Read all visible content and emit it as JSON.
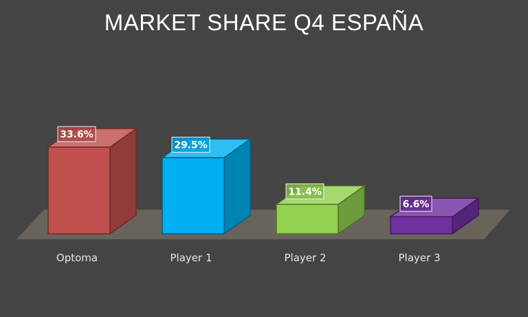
{
  "chart_data": {
    "type": "bar",
    "title": "MARKET SHARE Q4 ESPAÑA",
    "categories": [
      "Optoma",
      "Player 1",
      "Player 2",
      "Player 3"
    ],
    "values": [
      33.6,
      29.5,
      11.4,
      6.6
    ],
    "value_labels": [
      "33.6%",
      "29.5%",
      "11.4%",
      "6.6%"
    ],
    "colors": [
      "#c0504d",
      "#00b0f0",
      "#92d050",
      "#7030a0"
    ],
    "style": "3d-column",
    "xlabel": "",
    "ylabel": "",
    "grid": false,
    "legend": "none"
  }
}
